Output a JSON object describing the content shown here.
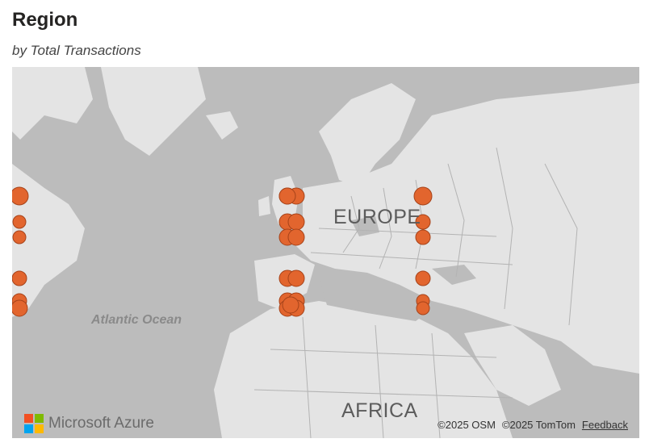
{
  "header": {
    "title": "Region",
    "subtitle": "by Total Transactions"
  },
  "map": {
    "labels": {
      "europe": "EUROPE",
      "africa": "AFRICA",
      "ocean": "Atlantic Ocean"
    },
    "marker_color": "#e2652e",
    "markers": [
      {
        "r": 11
      },
      {
        "r": 8
      },
      {
        "r": 8
      },
      {
        "r": 9
      },
      {
        "r": 9
      },
      {
        "r": 10
      },
      {
        "r": 10
      },
      {
        "r": 10
      },
      {
        "r": 10
      },
      {
        "r": 10
      },
      {
        "r": 10
      },
      {
        "r": 10
      },
      {
        "r": 10
      },
      {
        "r": 10
      },
      {
        "r": 10
      },
      {
        "r": 10
      },
      {
        "r": 10
      },
      {
        "r": 10
      },
      {
        "r": 10
      },
      {
        "r": 10
      },
      {
        "r": 11
      },
      {
        "r": 9
      },
      {
        "r": 9
      },
      {
        "r": 9
      },
      {
        "r": 8
      },
      {
        "r": 8
      }
    ]
  },
  "branding": {
    "logo_icon": "microsoft-logo-icon",
    "logo_text": "Microsoft Azure"
  },
  "attribution": {
    "osm": "©2025 OSM",
    "tomtom": "©2025 TomTom",
    "feedback": "Feedback"
  }
}
